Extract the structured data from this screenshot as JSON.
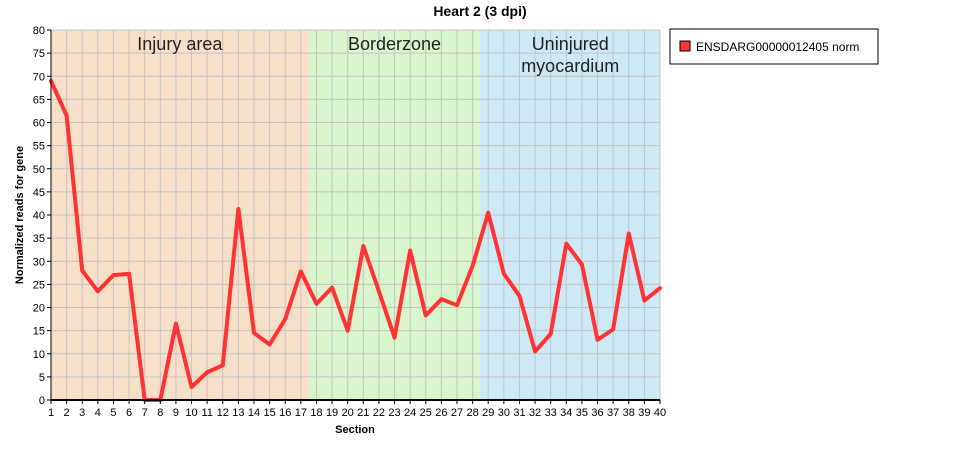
{
  "chart_data": {
    "type": "line",
    "title": "Heart 2 (3 dpi)",
    "xlabel": "Section",
    "ylabel": "Normalized reads for gene",
    "ylim": [
      0,
      80
    ],
    "y_ticks": [
      0,
      5,
      10,
      15,
      20,
      25,
      30,
      35,
      40,
      45,
      50,
      55,
      60,
      65,
      70,
      75,
      80
    ],
    "xlim": [
      1,
      40
    ],
    "x": [
      1,
      2,
      3,
      4,
      5,
      6,
      7,
      8,
      9,
      10,
      11,
      12,
      13,
      14,
      15,
      16,
      17,
      18,
      19,
      20,
      21,
      22,
      23,
      24,
      25,
      26,
      27,
      28,
      29,
      30,
      31,
      32,
      33,
      34,
      35,
      36,
      37,
      38,
      39,
      40
    ],
    "grid": true,
    "legend_placement": "right",
    "series": [
      {
        "name": "ENSDARG00000012405 norm",
        "color": "#ff3333",
        "values": [
          69,
          61.5,
          28,
          23.5,
          27,
          27.3,
          0,
          0,
          16.5,
          2.8,
          6,
          7.5,
          41.3,
          14.5,
          12,
          17.5,
          27.8,
          20.8,
          24.3,
          15,
          33.3,
          23.5,
          13.5,
          32.3,
          18.3,
          21.8,
          20.5,
          29,
          40.5,
          27.3,
          22.5,
          10.5,
          14.3,
          33.8,
          29.3,
          13,
          15.3,
          36,
          21.5,
          24.2
        ]
      }
    ],
    "regions": [
      {
        "label": "Injury area",
        "from": 1,
        "to": 17.5,
        "color": "#f8e0c8"
      },
      {
        "label": "Borderzone",
        "from": 17.5,
        "to": 28.5,
        "color": "#d9f5cc"
      },
      {
        "label": "Uninjured myocardium",
        "label_lines": [
          "Uninjured",
          "myocardium"
        ],
        "from": 28.5,
        "to": 40,
        "color": "#cde9f5"
      }
    ]
  }
}
